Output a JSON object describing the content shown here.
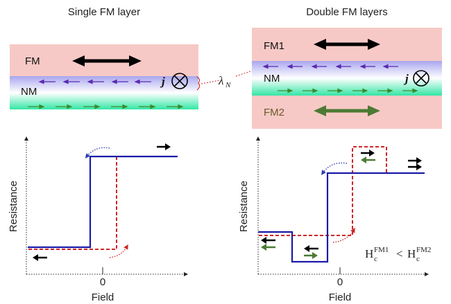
{
  "left_panel": {
    "title": "Single FM layer",
    "fm_label": "FM",
    "nm_label": "NM",
    "current_symbol": "j"
  },
  "right_panel": {
    "title": "Double FM layers",
    "fm1_label": "FM1",
    "nm_label": "NM",
    "fm2_label": "FM2",
    "current_symbol": "j"
  },
  "spin_diffusion_length": "λ",
  "spin_diffusion_length_sub": "N",
  "left_plot": {
    "ylabel": "Resistance",
    "xlabel": "Field",
    "zero_tick": "0"
  },
  "right_plot": {
    "ylabel": "Resistance",
    "xlabel": "Field",
    "zero_tick": "0",
    "condition": {
      "h1": "H",
      "sup1": "FM1",
      "sub1": "c",
      "op": "<",
      "h2": "H",
      "sup2": "FM2",
      "sub2": "c"
    }
  },
  "colors": {
    "fm_layer": "#f7c9c6",
    "nm_gradient_top": "#a9a6ee",
    "nm_gradient_bottom": "#34e6a5",
    "sweep_up": "#1a1aa8",
    "sweep_down": "#cc2626",
    "fm1_magnet": "#000000",
    "fm2_magnet": "#4c7a34"
  }
}
